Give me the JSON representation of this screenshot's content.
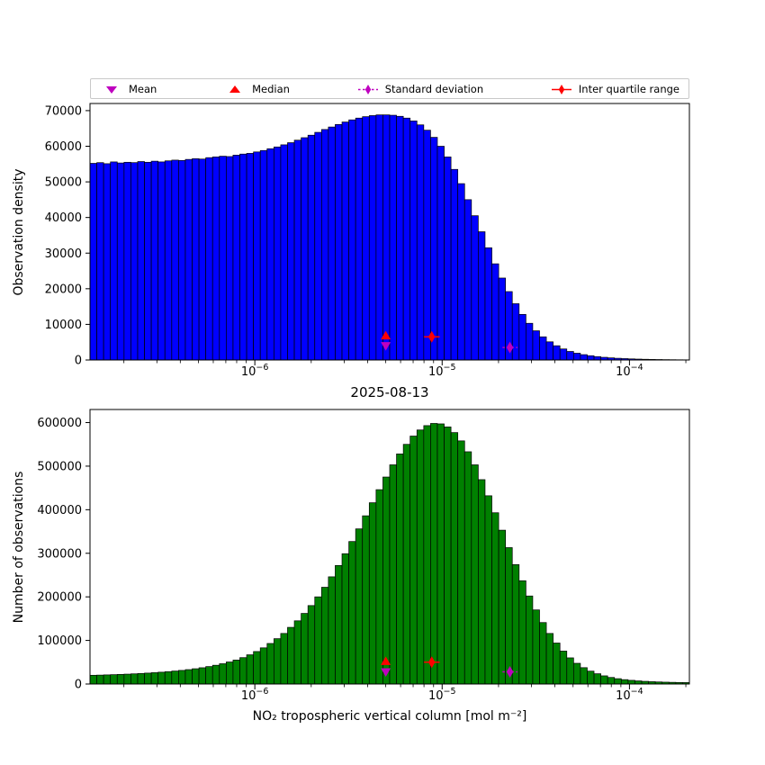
{
  "figure": {
    "background": "#ffffff"
  },
  "date_title": "2025-08-13",
  "legend": {
    "items": [
      {
        "label": "Mean",
        "marker": "triangle-down",
        "color": "#bf00bf"
      },
      {
        "label": "Median",
        "marker": "triangle-up",
        "color": "#ff0000"
      },
      {
        "label": "Standard deviation",
        "marker": "thin-diamond-dashed-line",
        "color": "#bf00bf"
      },
      {
        "label": "Inter quartile range",
        "marker": "thin-diamond-solid-line",
        "color": "#ff0000"
      }
    ]
  },
  "chart_data": [
    {
      "type": "bar",
      "name": "observation-density-histogram",
      "title": "",
      "ylabel": "Observation density",
      "xlabel": "",
      "xscale": "log",
      "grid": false,
      "x_log10_min": -6.88,
      "x_log10_max": -3.68,
      "ylim": [
        0,
        72000
      ],
      "yticks": [
        0,
        10000,
        20000,
        30000,
        40000,
        50000,
        60000,
        70000
      ],
      "xtick_exponents": [
        -6,
        -5,
        -4
      ],
      "bar_color": "#0000ff",
      "bar_edge_color": "#000000",
      "values": [
        55200,
        55400,
        55100,
        55600,
        55300,
        55500,
        55400,
        55700,
        55500,
        55800,
        55600,
        55900,
        56100,
        56000,
        56300,
        56500,
        56400,
        56800,
        57000,
        57200,
        57100,
        57500,
        57800,
        58000,
        58400,
        58800,
        59300,
        59800,
        60400,
        61000,
        61700,
        62400,
        63100,
        63900,
        64700,
        65400,
        66100,
        66800,
        67400,
        67900,
        68300,
        68600,
        68800,
        68800,
        68700,
        68400,
        67900,
        67100,
        66000,
        64500,
        62500,
        60000,
        57000,
        53500,
        49500,
        45000,
        40500,
        36000,
        31500,
        27000,
        23000,
        19200,
        15800,
        12800,
        10300,
        8200,
        6500,
        5100,
        4000,
        3100,
        2400,
        1900,
        1500,
        1200,
        950,
        750,
        600,
        480,
        390,
        310,
        250,
        200,
        160,
        130,
        100,
        80,
        60,
        50
      ],
      "markers": [
        {
          "name": "mean",
          "shape": "triangle-down",
          "color": "#bf00bf",
          "x": 5e-06,
          "y": 4000
        },
        {
          "name": "median",
          "shape": "triangle-up",
          "color": "#ff0000",
          "x": 5e-06,
          "y": 6800
        },
        {
          "name": "inter-quartile-range",
          "shape": "thin-diamond",
          "color": "#ff0000",
          "x": 8.8e-06,
          "y": 6500,
          "xerr": [
            8e-06,
            9.7e-06
          ],
          "line_style": "solid"
        },
        {
          "name": "standard-deviation",
          "shape": "thin-diamond",
          "color": "#bf00bf",
          "x": 2.3e-05,
          "y": 3500,
          "xerr": [
            2.1e-05,
            2.52e-05
          ],
          "line_style": "dashed"
        }
      ]
    },
    {
      "type": "bar",
      "name": "number-of-observations-histogram",
      "title": "2025-08-13",
      "ylabel": "Number of observations",
      "xlabel": "NO₂ tropospheric vertical column [mol m⁻²]",
      "xscale": "log",
      "grid": false,
      "x_log10_min": -6.88,
      "x_log10_max": -3.68,
      "ylim": [
        0,
        630000
      ],
      "yticks": [
        0,
        100000,
        200000,
        300000,
        400000,
        500000,
        600000
      ],
      "xtick_exponents": [
        -6,
        -5,
        -4
      ],
      "bar_color": "#008000",
      "bar_edge_color": "#000000",
      "values": [
        20000,
        20400,
        20900,
        21400,
        22000,
        22600,
        23300,
        24100,
        25000,
        26000,
        27100,
        28300,
        29700,
        31200,
        33000,
        35000,
        37300,
        40000,
        43000,
        46500,
        50500,
        55000,
        60500,
        67000,
        74500,
        83000,
        93000,
        104000,
        116000,
        130000,
        145000,
        162000,
        180000,
        200000,
        222000,
        246000,
        272000,
        299000,
        327000,
        356000,
        386000,
        416000,
        446000,
        475000,
        503000,
        528000,
        550000,
        569000,
        583000,
        593000,
        598000,
        597000,
        590000,
        577000,
        558000,
        533000,
        503000,
        469000,
        432000,
        393000,
        353000,
        313000,
        274000,
        237000,
        202000,
        170000,
        141000,
        116000,
        94000,
        75500,
        60000,
        47500,
        37500,
        29500,
        23500,
        18700,
        15000,
        12200,
        10000,
        8400,
        7100,
        6100,
        5300,
        4700,
        4200,
        3800,
        3500,
        3300
      ],
      "markers": [
        {
          "name": "mean",
          "shape": "triangle-down",
          "color": "#bf00bf",
          "x": 5e-06,
          "y": 28000
        },
        {
          "name": "median",
          "shape": "triangle-up",
          "color": "#ff0000",
          "x": 5e-06,
          "y": 52000
        },
        {
          "name": "inter-quartile-range",
          "shape": "thin-diamond",
          "color": "#ff0000",
          "x": 8.8e-06,
          "y": 50000,
          "xerr": [
            8e-06,
            9.7e-06
          ],
          "line_style": "solid"
        },
        {
          "name": "standard-deviation",
          "shape": "thin-diamond",
          "color": "#bf00bf",
          "x": 2.3e-05,
          "y": 28000,
          "xerr": [
            2.1e-05,
            2.52e-05
          ],
          "line_style": "dashed"
        }
      ]
    }
  ]
}
